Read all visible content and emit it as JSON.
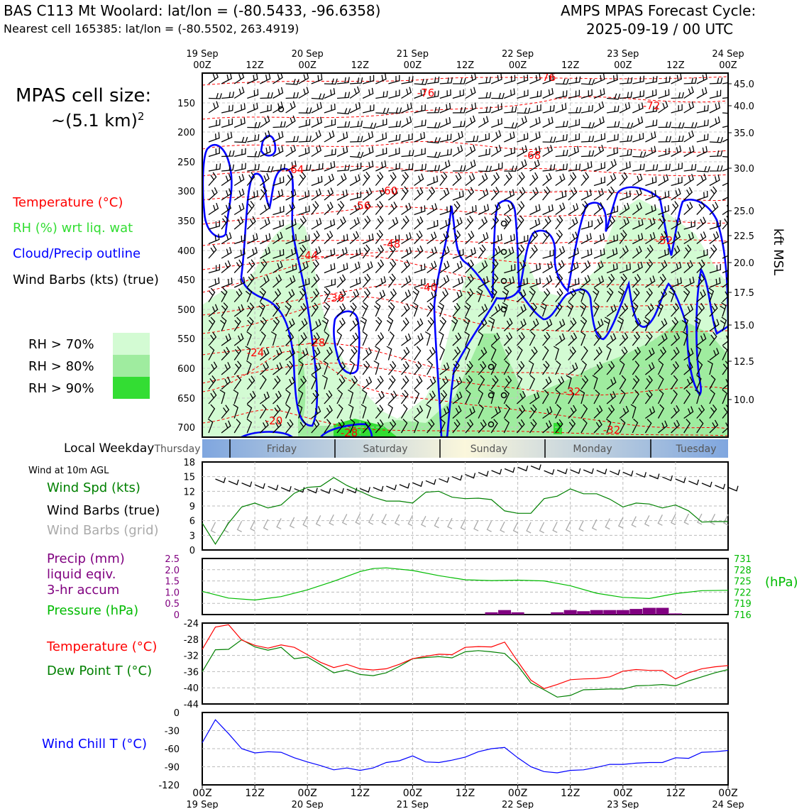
{
  "header": {
    "station": "BAS C113 Mt Woolard: lat/lon = (-80.5433, -96.6358)",
    "nearest": "Nearest cell 165385: lat/lon = (-80.5502, 263.4919)",
    "forecast_title": "AMPS MPAS Forecast Cycle:",
    "forecast_cycle": "2025-09-19 / 00 UTC",
    "cell_size_label": "MPAS cell size:",
    "cell_size_value": "~(5.1 km)",
    "cell_size_exp": "2"
  },
  "legend": {
    "temperature": "Temperature (°C)",
    "rh": "RH (%) wrt liq. wat",
    "cloud": "Cloud/Precip outline",
    "wind": "Wind Barbs (kts) (true)",
    "rh70": "RH > 70%",
    "rh80": "RH > 80%",
    "rh90": "RH > 90%",
    "rh70_color": "#d3fbd3",
    "rh80_color": "#9fec9f",
    "rh90_color": "#33dd33"
  },
  "weekday": {
    "label": "Local Weekday",
    "days": [
      "Thursday",
      "Friday",
      "Saturday",
      "Sunday",
      "Monday",
      "Tuesday"
    ]
  },
  "panels": {
    "wind10m_title": "Wind at 10m AGL",
    "wind_spd": "Wind Spd (kts)",
    "wind_barbs_true": "Wind Barbs (true)",
    "wind_barbs_grid": "Wind Barbs (grid)",
    "precip1": "Precip (mm)",
    "precip2": "liquid eqiv.",
    "precip3": "3-hr accum",
    "pressure": "Pressure (hPa)",
    "hpa_unit": "(hPa)",
    "temp": "Temperature (°C)",
    "dewpt": "Dew Point T (°C)",
    "windchill": "Wind Chill T (°C)"
  },
  "chart_data": {
    "type": "line",
    "time_axis": {
      "top_labels": [
        [
          "19 Sep",
          "00Z"
        ],
        [
          "",
          "12Z"
        ],
        [
          "20 Sep",
          "00Z"
        ],
        [
          "",
          "12Z"
        ],
        [
          "21 Sep",
          "00Z"
        ],
        [
          "",
          "12Z"
        ],
        [
          "22 Sep",
          "00Z"
        ],
        [
          "",
          "12Z"
        ],
        [
          "23 Sep",
          "00Z"
        ],
        [
          "",
          "12Z"
        ],
        [
          "24 Sep",
          "00Z"
        ]
      ],
      "bottom_labels": [
        [
          "00Z",
          "19 Sep"
        ],
        [
          "12Z",
          ""
        ],
        [
          "00Z",
          "20 Sep"
        ],
        [
          "12Z",
          ""
        ],
        [
          "00Z",
          "21 Sep"
        ],
        [
          "12Z",
          ""
        ],
        [
          "00Z",
          "22 Sep"
        ],
        [
          "12Z",
          ""
        ],
        [
          "00Z",
          "23 Sep"
        ],
        [
          "12Z",
          ""
        ],
        [
          "00Z",
          "24 Sep"
        ]
      ],
      "range_hours": [
        0,
        120
      ]
    },
    "cross_section": {
      "ylabel_right": "kft MSL",
      "pressure_ticks": [
        "150",
        "200",
        "250",
        "300",
        "350",
        "400",
        "450",
        "500",
        "550",
        "600",
        "650",
        "700"
      ],
      "kft_ticks": [
        "45.0",
        "40.0",
        "35.0",
        "30.0",
        "25.0",
        "22.5",
        "20.0",
        "17.5",
        "15.0",
        "12.5",
        "10.0"
      ],
      "temp_labels": [
        "-76",
        "-76",
        "-72",
        "-68",
        "-64",
        "-60",
        "-56",
        "-52",
        "-48",
        "-44",
        "-40",
        "-36",
        "-32",
        "-32",
        "-28",
        "-28",
        "-24",
        "-20"
      ]
    },
    "wind": {
      "ylim": [
        0,
        18
      ],
      "yticks": [
        "0",
        "3",
        "6",
        "9",
        "12",
        "15",
        "18"
      ],
      "hours": [
        0,
        3,
        6,
        9,
        12,
        15,
        18,
        21,
        24,
        27,
        30,
        33,
        36,
        39,
        42,
        45,
        48,
        51,
        54,
        57,
        60,
        63,
        66,
        69,
        72,
        75,
        78,
        81,
        84,
        87,
        90,
        93,
        96,
        99,
        102,
        105,
        108,
        111,
        114,
        117,
        120
      ],
      "speed_kts": [
        5.5,
        1.2,
        5.5,
        8.8,
        9.6,
        8.6,
        9.2,
        11.6,
        12.8,
        13.0,
        14.8,
        13.2,
        12.0,
        10.8,
        10.0,
        10.0,
        9.6,
        11.8,
        12.0,
        10.8,
        10.5,
        10.6,
        10.3,
        8.0,
        7.5,
        7.5,
        10.5,
        11.0,
        12.5,
        11.5,
        11.5,
        10.4,
        8.8,
        9.6,
        9.4,
        8.6,
        9.2,
        8.0,
        5.7,
        5.8,
        5.8
      ]
    },
    "pressure": {
      "precip_ylim": [
        0,
        2.5
      ],
      "precip_ticks": [
        "0",
        "0.5",
        "1.0",
        "1.5",
        "2.0",
        "2.5"
      ],
      "pressure_ticks": [
        "716",
        "719",
        "722",
        "725",
        "728",
        "731"
      ],
      "pressure_ylim": [
        716,
        731
      ],
      "hours": [
        0,
        6,
        12,
        18,
        24,
        30,
        36,
        39,
        42,
        48,
        54,
        60,
        66,
        72,
        78,
        84,
        90,
        96,
        102,
        108,
        114,
        120
      ],
      "pressure_hpa": [
        722.2,
        720.4,
        719.9,
        720.8,
        722.6,
        724.9,
        727.5,
        728.3,
        728.5,
        727.8,
        726.4,
        725.3,
        725.1,
        725.2,
        725.0,
        723.7,
        721.7,
        720.6,
        720.3,
        721.6,
        722.4,
        722.5
      ],
      "precip_hours": [
        66,
        69,
        72,
        81,
        84,
        87,
        90,
        93,
        96,
        99,
        102,
        105,
        108
      ],
      "precip_mm": [
        0.1,
        0.2,
        0.1,
        0.1,
        0.2,
        0.15,
        0.2,
        0.2,
        0.2,
        0.25,
        0.3,
        0.3,
        0.05
      ]
    },
    "temperature": {
      "ylim": [
        -44,
        -24
      ],
      "yticks": [
        "-24",
        "-28",
        "-32",
        "-36",
        "-40",
        "-44"
      ],
      "hours": [
        0,
        3,
        6,
        9,
        12,
        15,
        18,
        21,
        24,
        27,
        30,
        33,
        36,
        39,
        42,
        45,
        48,
        51,
        54,
        57,
        60,
        63,
        66,
        69,
        72,
        75,
        78,
        81,
        84,
        87,
        90,
        93,
        96,
        99,
        102,
        105,
        108,
        111,
        114,
        117,
        120
      ],
      "temp_c": [
        -30.5,
        -25.0,
        -24.4,
        -28.2,
        -29.5,
        -30.2,
        -29.4,
        -30.0,
        -31.8,
        -33.7,
        -35.0,
        -34.2,
        -35.3,
        -35.6,
        -35.3,
        -34.2,
        -32.8,
        -32.2,
        -31.7,
        -31.8,
        -30.0,
        -29.8,
        -29.9,
        -28.7,
        -33.5,
        -38.1,
        -40.2,
        -39.2,
        -38.0,
        -37.8,
        -37.7,
        -37.3,
        -35.9,
        -35.5,
        -35.7,
        -35.7,
        -37.8,
        -36.3,
        -35.3,
        -34.8,
        -34.5
      ],
      "dewpt_c": [
        -36.0,
        -30.6,
        -30.5,
        -28.1,
        -29.9,
        -30.7,
        -30.0,
        -32.8,
        -32.4,
        -34.3,
        -36.3,
        -35.6,
        -36.7,
        -37.0,
        -36.3,
        -34.7,
        -32.8,
        -32.5,
        -32.3,
        -32.6,
        -31.1,
        -30.8,
        -31.1,
        -31.5,
        -34.5,
        -38.8,
        -40.5,
        -42.3,
        -41.9,
        -40.5,
        -40.4,
        -40.3,
        -40.3,
        -39.5,
        -39.4,
        -39.2,
        -39.5,
        -38.3,
        -37.3,
        -36.3,
        -35.5
      ]
    },
    "windchill": {
      "ylim": [
        -120,
        0
      ],
      "yticks": [
        "0",
        "-30",
        "-60",
        "-90",
        "-120"
      ],
      "hours": [
        0,
        3,
        6,
        9,
        12,
        15,
        18,
        21,
        24,
        27,
        30,
        33,
        36,
        39,
        42,
        45,
        48,
        51,
        54,
        57,
        60,
        63,
        66,
        69,
        72,
        75,
        78,
        81,
        84,
        87,
        90,
        93,
        96,
        99,
        102,
        105,
        108,
        111,
        114,
        117,
        120
      ],
      "chill_c": [
        -50,
        -12,
        -35,
        -60,
        -67,
        -65,
        -66,
        -75,
        -82,
        -88,
        -95,
        -92,
        -96,
        -92,
        -83,
        -80,
        -72,
        -82,
        -83,
        -79,
        -74,
        -65,
        -60,
        -58,
        -75,
        -90,
        -98,
        -100,
        -96,
        -95,
        -91,
        -86,
        -86,
        -84,
        -83,
        -83,
        -75,
        -76,
        -66,
        -65,
        -63
      ]
    }
  }
}
